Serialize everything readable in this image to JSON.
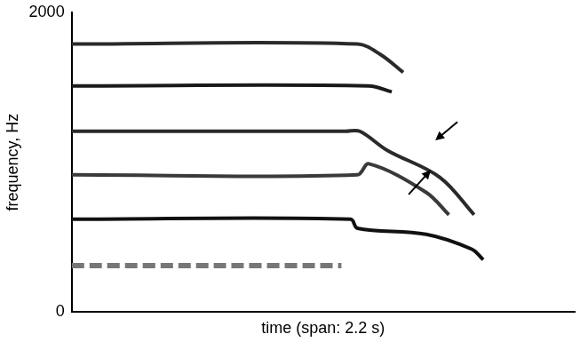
{
  "chart_data": {
    "type": "scatter",
    "xlabel": "time (span: 2.2 s)",
    "ylabel": "frequency, Hz",
    "xlim": [
      0,
      2.2
    ],
    "ylim": [
      0,
      2000
    ],
    "yticks": [
      0,
      2000
    ],
    "tick_labels": "y",
    "grid": false,
    "series": [
      {
        "color": "#2a2a2a",
        "line_style": "solid",
        "marker": "none",
        "x": [
          0,
          1.25,
          1.35,
          1.45
        ],
        "values": [
          1789,
          1789,
          1720,
          1600
        ]
      },
      {
        "color": "#1a1a1a",
        "line_style": "solid",
        "marker": "none",
        "x": [
          0,
          1.3,
          1.4
        ],
        "values": [
          1510,
          1510,
          1470
        ]
      },
      {
        "color": "#2a2a2a",
        "line_style": "solid",
        "marker": "none",
        "x": [
          0,
          1.2,
          1.26,
          1.38,
          1.61,
          1.76
        ],
        "values": [
          1207,
          1207,
          1207,
          1080,
          900,
          650
        ]
      },
      {
        "color": "#3a3a3a",
        "line_style": "solid",
        "marker": "none",
        "x": [
          0,
          1.25,
          1.3,
          1.55,
          1.65
        ],
        "values": [
          916,
          916,
          990,
          800,
          650
        ]
      },
      {
        "color": "#111111",
        "line_style": "solid",
        "marker": "none",
        "x": [
          0,
          1.22,
          1.25,
          1.55,
          1.75,
          1.8
        ],
        "values": [
          620,
          620,
          560,
          520,
          420,
          350
        ]
      },
      {
        "color": "#777777",
        "line_style": "dashed",
        "marker": "none",
        "x": [
          0,
          1.18
        ],
        "values": [
          310,
          310
        ]
      }
    ]
  }
}
